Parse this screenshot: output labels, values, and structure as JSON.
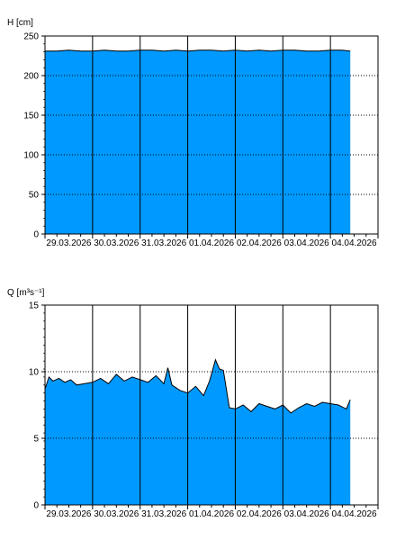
{
  "chart_data": [
    {
      "type": "area",
      "ylabel": "H [cm]",
      "ylim": [
        0,
        250
      ],
      "yticks": [
        0,
        50,
        100,
        150,
        200,
        250
      ],
      "xlim": [
        "2026-03-29T00:00",
        "2026-04-05T00:00"
      ],
      "xtick_labels": [
        "29.03.2026",
        "30.03.2026",
        "31.03.2026",
        "01.04.2026",
        "02.04.2026",
        "03.04.2026",
        "04.04.2026"
      ],
      "grid": true,
      "fill_color": "#0099ff",
      "series": [
        {
          "x": [
            "2026-03-29T00:00",
            "2026-03-29T06:00",
            "2026-03-29T12:00",
            "2026-03-29T18:00",
            "2026-03-30T00:00",
            "2026-03-30T06:00",
            "2026-03-30T12:00",
            "2026-03-30T18:00",
            "2026-03-31T00:00",
            "2026-03-31T06:00",
            "2026-03-31T12:00",
            "2026-03-31T18:00",
            "2026-04-01T00:00",
            "2026-04-01T06:00",
            "2026-04-01T12:00",
            "2026-04-01T18:00",
            "2026-04-02T00:00",
            "2026-04-02T06:00",
            "2026-04-02T12:00",
            "2026-04-02T18:00",
            "2026-04-03T00:00",
            "2026-04-03T06:00",
            "2026-04-03T12:00",
            "2026-04-03T18:00",
            "2026-04-04T00:00",
            "2026-04-04T06:00",
            "2026-04-04T10:00"
          ],
          "values": [
            231,
            231,
            232,
            231,
            231,
            232,
            231,
            231,
            232,
            232,
            231,
            232,
            231,
            232,
            232,
            231,
            232,
            231,
            232,
            231,
            232,
            232,
            231,
            231,
            232,
            232,
            231
          ]
        }
      ]
    },
    {
      "type": "area",
      "ylabel": "Q [m³s⁻¹]",
      "ylim": [
        0,
        15
      ],
      "yticks": [
        0,
        5,
        10,
        15
      ],
      "xlim": [
        "2026-03-29T00:00",
        "2026-04-05T00:00"
      ],
      "xtick_labels": [
        "29.03.2026",
        "30.03.2026",
        "31.03.2026",
        "01.04.2026",
        "02.04.2026",
        "03.04.2026",
        "04.04.2026"
      ],
      "grid": true,
      "fill_color": "#0099ff",
      "series": [
        {
          "x": [
            "2026-03-29T00:00",
            "2026-03-29T02:00",
            "2026-03-29T04:00",
            "2026-03-29T07:00",
            "2026-03-29T10:00",
            "2026-03-29T13:00",
            "2026-03-29T16:00",
            "2026-03-29T20:00",
            "2026-03-30T00:00",
            "2026-03-30T04:00",
            "2026-03-30T08:00",
            "2026-03-30T12:00",
            "2026-03-30T16:00",
            "2026-03-30T20:00",
            "2026-03-31T00:00",
            "2026-03-31T04:00",
            "2026-03-31T08:00",
            "2026-03-31T12:00",
            "2026-03-31T14:00",
            "2026-03-31T16:00",
            "2026-03-31T20:00",
            "2026-04-01T00:00",
            "2026-04-01T04:00",
            "2026-04-01T08:00",
            "2026-04-01T11:00",
            "2026-04-01T14:00",
            "2026-04-01T16:00",
            "2026-04-01T18:00",
            "2026-04-01T21:00",
            "2026-04-02T00:00",
            "2026-04-02T04:00",
            "2026-04-02T08:00",
            "2026-04-02T12:00",
            "2026-04-02T16:00",
            "2026-04-02T20:00",
            "2026-04-03T00:00",
            "2026-04-03T04:00",
            "2026-04-03T08:00",
            "2026-04-03T12:00",
            "2026-04-03T16:00",
            "2026-04-03T20:00",
            "2026-04-04T00:00",
            "2026-04-04T04:00",
            "2026-04-04T08:00",
            "2026-04-04T10:00"
          ],
          "values": [
            8.7,
            9.6,
            9.3,
            9.5,
            9.2,
            9.4,
            9.0,
            9.1,
            9.2,
            9.5,
            9.1,
            9.8,
            9.3,
            9.6,
            9.4,
            9.2,
            9.7,
            9.1,
            10.3,
            9.0,
            8.6,
            8.4,
            8.9,
            8.2,
            9.3,
            10.9,
            10.2,
            10.1,
            7.3,
            7.2,
            7.5,
            7.0,
            7.6,
            7.4,
            7.2,
            7.5,
            6.9,
            7.3,
            7.6,
            7.4,
            7.7,
            7.6,
            7.5,
            7.2,
            7.9
          ]
        }
      ]
    }
  ]
}
